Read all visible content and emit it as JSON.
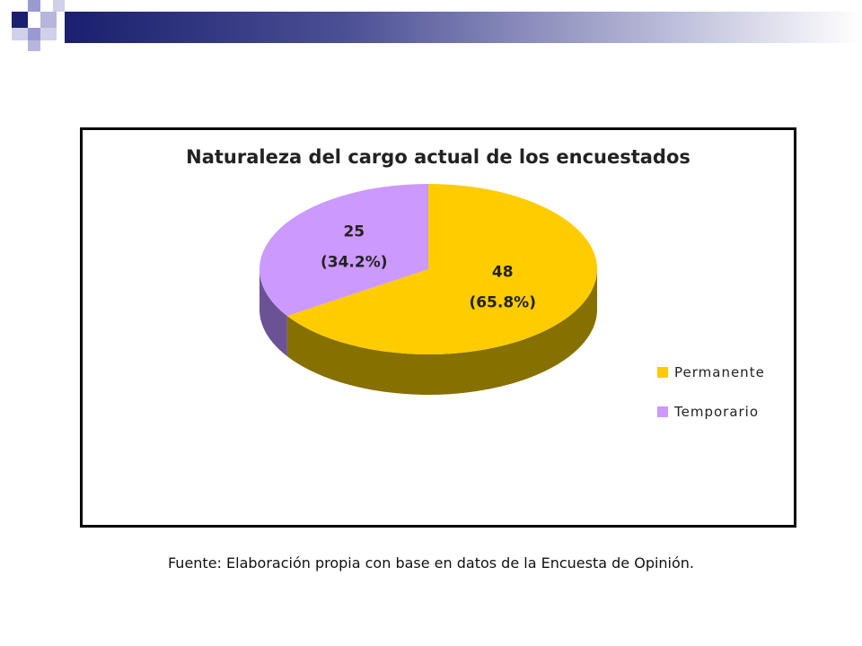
{
  "decoration": {
    "colors": {
      "navy": "#1a1f6e",
      "lavender": "#9a9ad2",
      "gradient_end": "#ffffff"
    }
  },
  "chart_data": {
    "type": "pie",
    "title": "Naturaleza del cargo actual de los encuestados",
    "three_d": true,
    "series": [
      {
        "name": "Permanente",
        "value": 48,
        "value_label": "48",
        "percent_label": "(65.8%)",
        "color": "#ffcc00",
        "side_color": "#857000"
      },
      {
        "name": "Temporario",
        "value": 25,
        "value_label": "25",
        "percent_label": "(34.2%)",
        "color": "#cc99ff",
        "side_color": "#6b5294"
      }
    ],
    "legend_position": "right"
  },
  "source_note": "Fuente: Elaboración propia con base en datos de la Encuesta de Opinión."
}
